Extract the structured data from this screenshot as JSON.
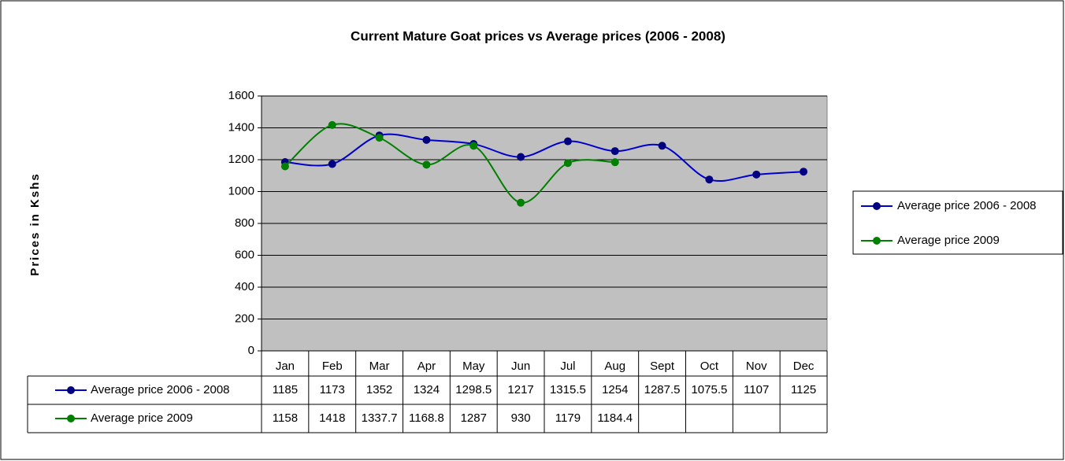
{
  "chart_data": {
    "type": "line",
    "title": "Current Mature Goat prices vs Average prices (2006 - 2008)",
    "y_label": "Prices in Kshs",
    "categories": [
      "Jan",
      "Feb",
      "Mar",
      "Apr",
      "May",
      "Jun",
      "Jul",
      "Aug",
      "Sept",
      "Oct",
      "Nov",
      "Dec"
    ],
    "series": [
      {
        "name": "Average price 2006 - 2008",
        "color": "#0000cc",
        "values": [
          1185,
          1173,
          1352,
          1324,
          1298.5,
          1217,
          1315.5,
          1254,
          1287.5,
          1075.5,
          1107,
          1125
        ]
      },
      {
        "name": "Average price 2009",
        "color": "#008000",
        "values": [
          1158,
          1418,
          1337.7,
          1168.8,
          1287,
          930,
          1179,
          1184.4,
          null,
          null,
          null,
          null
        ]
      }
    ],
    "ylim": [
      0,
      1600
    ],
    "yticks": [
      0,
      200,
      400,
      600,
      800,
      1000,
      1200,
      1400,
      1600
    ],
    "grid": true,
    "legend": "right",
    "smooth": true,
    "data_table": true
  }
}
